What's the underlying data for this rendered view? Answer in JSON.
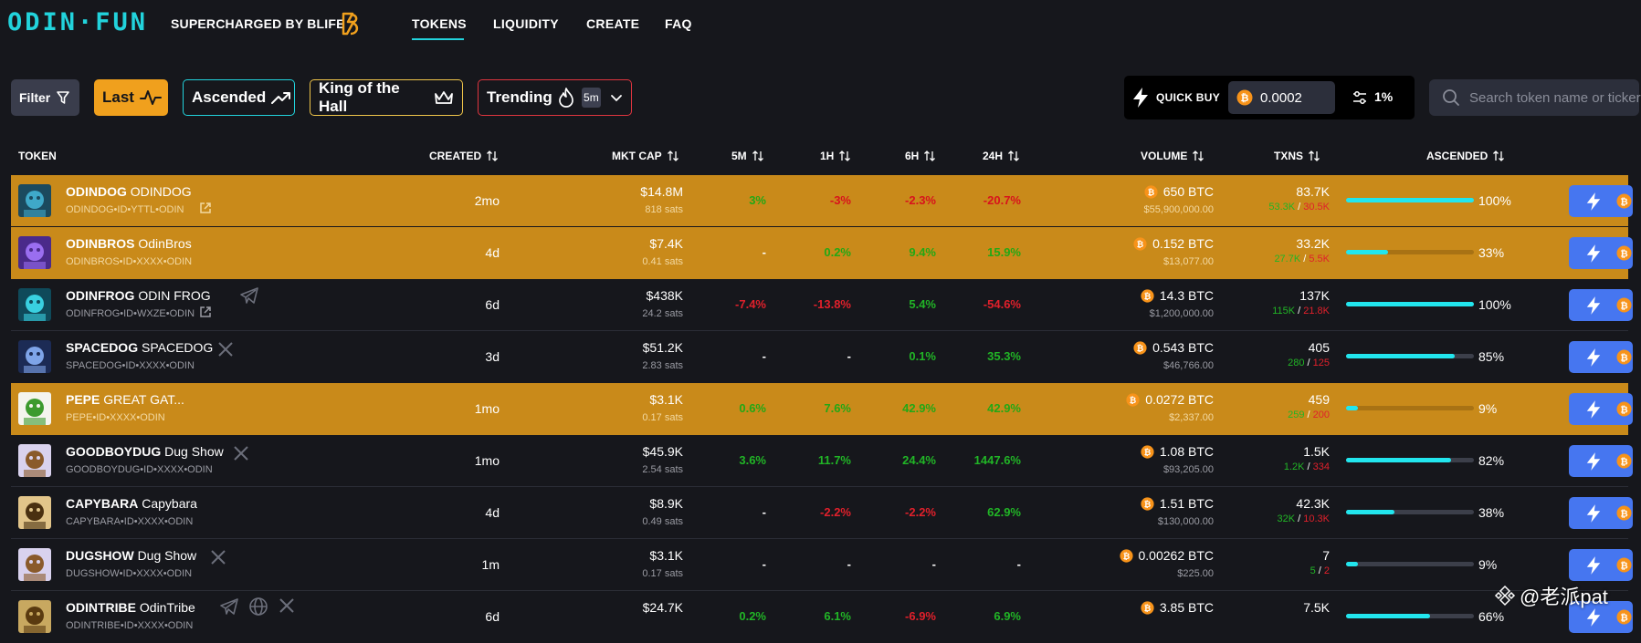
{
  "header": {
    "logo": "ODIN·FUN",
    "tagline": "SUPERCHARGED BY BLIFE",
    "nav": [
      "TOKENS",
      "LIQUIDITY",
      "CREATE",
      "FAQ"
    ],
    "active_nav": "TOKENS"
  },
  "filters": {
    "filter_label": "Filter",
    "last_label": "Last",
    "ascended_label": "Ascended",
    "king_label": "King of the Hall",
    "trending_label": "Trending",
    "trending_interval": "5m"
  },
  "quick_buy": {
    "label": "QUICK BUY",
    "amount": "0.0002",
    "slippage": "1%"
  },
  "search": {
    "placeholder": "Search token name or ticker"
  },
  "table": {
    "headers": {
      "token": "TOKEN",
      "created": "CREATED",
      "mkt_cap": "MKT CAP",
      "m5": "5M",
      "h1": "1H",
      "h6": "6H",
      "h24": "24H",
      "volume": "VOLUME",
      "txns": "TXNS",
      "ascended": "ASCENDED"
    },
    "rows": [
      {
        "ticker": "ODINDOG",
        "name": "ODINDOG",
        "id": "ODINDOG•ID•YTTL•ODIN",
        "created": "2mo",
        "mcap": "$14.8M",
        "mcap_sats": "818 sats",
        "m5": "3%",
        "h1": "-3%",
        "h6": "-2.3%",
        "h24": "-20.7%",
        "volume": "650 BTC",
        "volume_usd": "$55,900,000.00",
        "txns": "83.7K",
        "buys": "53.3K",
        "sells": "30.5K",
        "ascended": "100%",
        "ascended_frac": 1.0,
        "highlight": true,
        "social": "link"
      },
      {
        "ticker": "ODINBROS",
        "name": "OdinBros",
        "id": "ODINBROS•ID•XXXX•ODIN",
        "created": "4d",
        "mcap": "$7.4K",
        "mcap_sats": "0.41 sats",
        "m5": "-",
        "h1": "0.2%",
        "h6": "9.4%",
        "h24": "15.9%",
        "volume": "0.152 BTC",
        "volume_usd": "$13,077.00",
        "txns": "33.2K",
        "buys": "27.7K",
        "sells": "5.5K",
        "ascended": "33%",
        "ascended_frac": 0.33,
        "highlight": true,
        "social": "none"
      },
      {
        "ticker": "ODINFROG",
        "name": "ODIN FROG",
        "id": "ODINFROG•ID•WXZE•ODIN",
        "created": "6d",
        "mcap": "$438K",
        "mcap_sats": "24.2 sats",
        "m5": "-7.4%",
        "h1": "-13.8%",
        "h6": "5.4%",
        "h24": "-54.6%",
        "volume": "14.3 BTC",
        "volume_usd": "$1,200,000.00",
        "txns": "137K",
        "buys": "115K",
        "sells": "21.8K",
        "ascended": "100%",
        "ascended_frac": 1.0,
        "highlight": false,
        "social": "telegram"
      },
      {
        "ticker": "SPACEDOG",
        "name": "SPACEDOG",
        "id": "SPACEDOG•ID•XXXX•ODIN",
        "created": "3d",
        "mcap": "$51.2K",
        "mcap_sats": "2.83 sats",
        "m5": "-",
        "h1": "-",
        "h6": "0.1%",
        "h24": "35.3%",
        "volume": "0.543 BTC",
        "volume_usd": "$46,766.00",
        "txns": "405",
        "buys": "280",
        "sells": "125",
        "ascended": "85%",
        "ascended_frac": 0.85,
        "highlight": false,
        "social": "x"
      },
      {
        "ticker": "PEPE",
        "name": "GREAT GAT...",
        "id": "PEPE•ID•XXXX•ODIN",
        "created": "1mo",
        "mcap": "$3.1K",
        "mcap_sats": "0.17 sats",
        "m5": "0.6%",
        "h1": "7.6%",
        "h6": "42.9%",
        "h24": "42.9%",
        "volume": "0.0272 BTC",
        "volume_usd": "$2,337.00",
        "txns": "459",
        "buys": "259",
        "sells": "200",
        "ascended": "9%",
        "ascended_frac": 0.09,
        "highlight": true,
        "social": "none"
      },
      {
        "ticker": "GOODBOYDUG",
        "name": "Dug Show",
        "id": "GOODBOYDUG•ID•XXXX•ODIN",
        "created": "1mo",
        "mcap": "$45.9K",
        "mcap_sats": "2.54 sats",
        "m5": "3.6%",
        "h1": "11.7%",
        "h6": "24.4%",
        "h24": "1447.6%",
        "volume": "1.08 BTC",
        "volume_usd": "$93,205.00",
        "txns": "1.5K",
        "buys": "1.2K",
        "sells": "334",
        "ascended": "82%",
        "ascended_frac": 0.82,
        "highlight": false,
        "social": "x"
      },
      {
        "ticker": "CAPYBARA",
        "name": "Capybara",
        "id": "CAPYBARA•ID•XXXX•ODIN",
        "created": "4d",
        "mcap": "$8.9K",
        "mcap_sats": "0.49 sats",
        "m5": "-",
        "h1": "-2.2%",
        "h6": "-2.2%",
        "h24": "62.9%",
        "volume": "1.51 BTC",
        "volume_usd": "$130,000.00",
        "txns": "42.3K",
        "buys": "32K",
        "sells": "10.3K",
        "ascended": "38%",
        "ascended_frac": 0.38,
        "highlight": false,
        "social": "none"
      },
      {
        "ticker": "DUGSHOW",
        "name": "Dug Show",
        "id": "DUGSHOW•ID•XXXX•ODIN",
        "created": "1m",
        "mcap": "$3.1K",
        "mcap_sats": "0.17 sats",
        "m5": "-",
        "h1": "-",
        "h6": "-",
        "h24": "-",
        "volume": "0.00262 BTC",
        "volume_usd": "$225.00",
        "txns": "7",
        "buys": "5",
        "sells": "2",
        "ascended": "9%",
        "ascended_frac": 0.09,
        "highlight": false,
        "social": "x"
      },
      {
        "ticker": "ODINTRIBE",
        "name": "OdinTribe",
        "id": "ODINTRIBE•ID•XXXX•ODIN",
        "created": "6d",
        "mcap": "$24.7K",
        "mcap_sats": "",
        "m5": "0.2%",
        "h1": "6.1%",
        "h6": "-6.9%",
        "h24": "6.9%",
        "volume": "3.85 BTC",
        "volume_usd": "",
        "txns": "7.5K",
        "buys": "",
        "sells": "",
        "ascended": "66%",
        "ascended_frac": 0.66,
        "highlight": false,
        "social": "multi"
      }
    ]
  },
  "watermark": "@老派pat",
  "colors": {
    "accent_cyan": "#22d3dc",
    "highlight_row": "#c98a1a",
    "positive": "#21b526",
    "negative": "#e0202b",
    "buy_button": "#4676f0",
    "btc_orange": "#f7931a"
  }
}
